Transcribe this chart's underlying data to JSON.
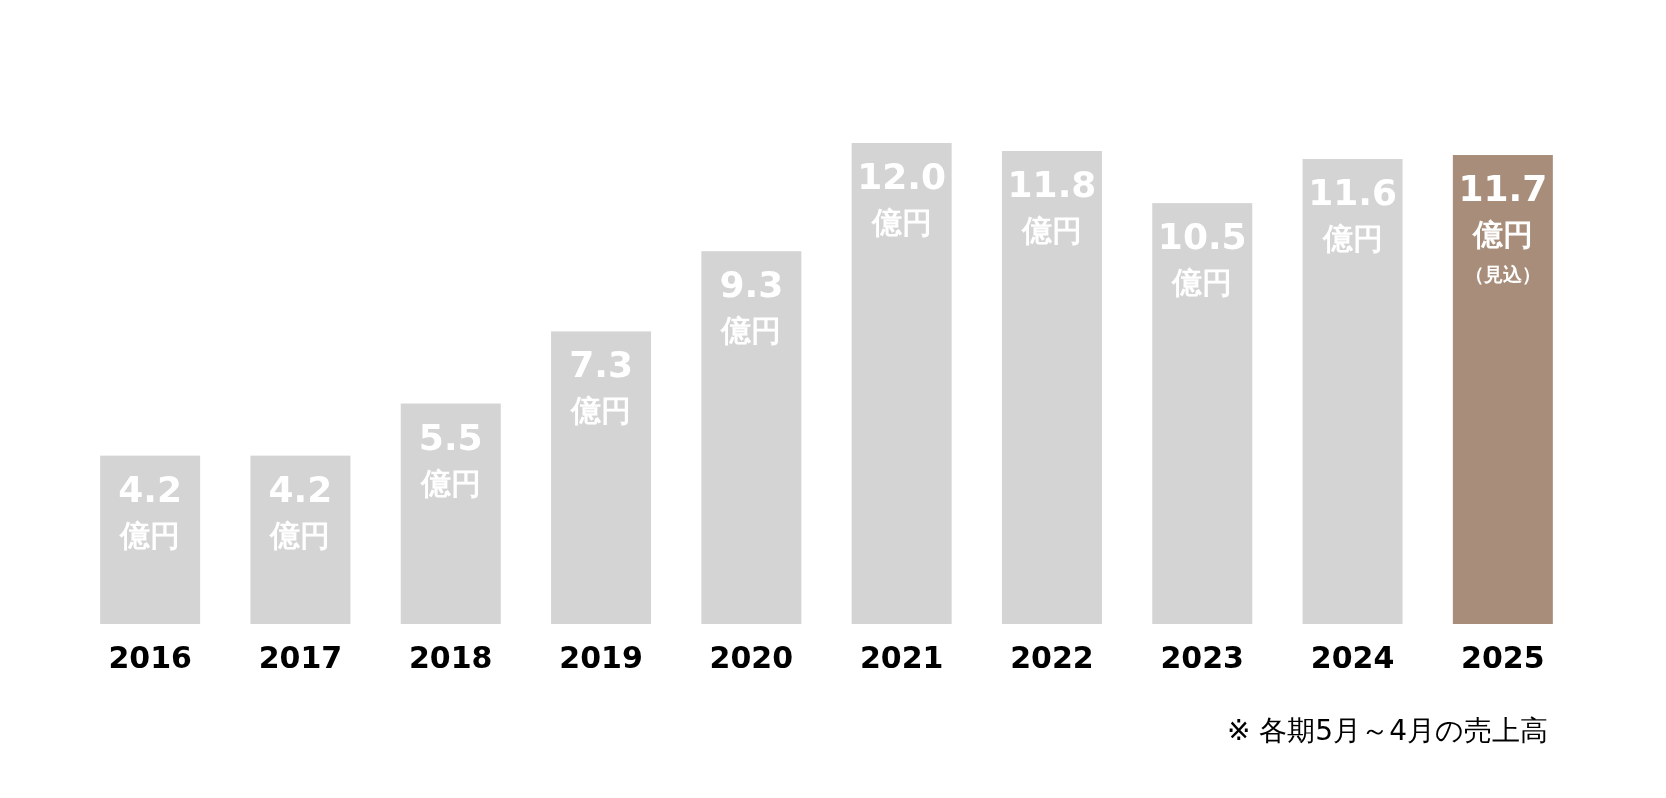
{
  "chart_data": {
    "type": "bar",
    "categories": [
      "2016",
      "2017",
      "2018",
      "2019",
      "2020",
      "2021",
      "2022",
      "2023",
      "2024",
      "2025"
    ],
    "values": [
      4.2,
      4.2,
      5.5,
      7.3,
      9.3,
      12.0,
      11.8,
      10.5,
      11.6,
      11.7
    ],
    "value_labels": [
      "4.2億円",
      "4.2億円",
      "5.5億円",
      "7.3億円",
      "9.3億円",
      "12.0億円",
      "11.8億円",
      "10.5億円",
      "11.6億円",
      "11.7億円（見込）"
    ],
    "colors": [
      "#d4d4d4",
      "#d4d4d4",
      "#d4d4d4",
      "#d4d4d4",
      "#d4d4d4",
      "#d4d4d4",
      "#d4d4d4",
      "#d4d4d4",
      "#d4d4d4",
      "#a88e7a"
    ],
    "annotations": [
      "※ 各期5月～4月の売上高"
    ]
  }
}
